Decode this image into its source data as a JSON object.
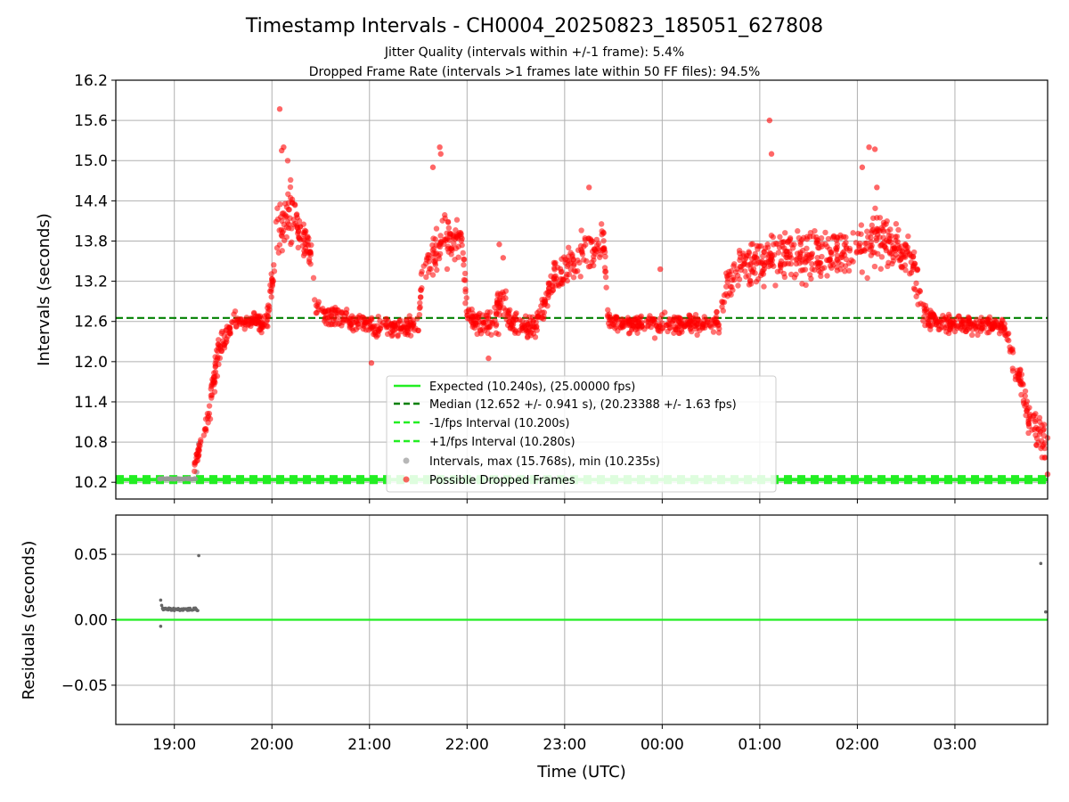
{
  "title": "Timestamp Intervals - CH0004_20250823_185051_627808",
  "subtitle1": "Jitter Quality (intervals within +/-1 frame): 5.4%",
  "subtitle2": "Dropped Frame Rate (intervals >1 frames late within 50 FF files): 94.5%",
  "chart_data": [
    {
      "type": "scatter",
      "panel": "top",
      "ylabel": "Intervals (seconds)",
      "ylim": [
        9.95,
        16.2
      ],
      "yticks": [
        10.2,
        10.8,
        11.4,
        12.0,
        12.6,
        13.2,
        13.8,
        14.4,
        15.0,
        15.6,
        16.2
      ],
      "ytick_labels": [
        "10.2",
        "10.8",
        "11.4",
        "12.0",
        "12.6",
        "13.2",
        "13.8",
        "14.4",
        "15.0",
        "15.6",
        "16.2"
      ],
      "xlim_hours": [
        18.4,
        27.95
      ],
      "grid": true,
      "legend_position": "lower-center",
      "reference_lines": [
        {
          "name": "Expected (10.240s), (25.00000 fps)",
          "value": 10.24,
          "style": "solid",
          "color": "#22ee22"
        },
        {
          "name": "Median (12.652 +/- 0.941 s), (20.23388 +/- 1.63 fps)",
          "value": 12.652,
          "style": "dashed",
          "color": "#008000"
        },
        {
          "name": "-1/fps Interval (10.200s)",
          "value": 10.2,
          "style": "dashed",
          "color": "#22ee22"
        },
        {
          "name": "+1/fps Interval (10.280s)",
          "value": 10.28,
          "style": "dashed",
          "color": "#22ee22"
        }
      ],
      "series": [
        {
          "name": "Intervals, max (15.768s), min (10.235s)",
          "color": "#999999",
          "points": [
            [
              18.85,
              10.25
            ],
            [
              18.95,
              10.25
            ],
            [
              19.05,
              10.25
            ],
            [
              19.15,
              10.26
            ],
            [
              19.23,
              10.35
            ],
            [
              19.25,
              10.78
            ]
          ]
        },
        {
          "name": "Possible Dropped Frames",
          "color": "#ff0000",
          "profile": [
            [
              19.2,
              10.4,
              0.05
            ],
            [
              19.35,
              11.2,
              0.15
            ],
            [
              19.45,
              12.1,
              0.2
            ],
            [
              19.6,
              12.6,
              0.12
            ],
            [
              19.8,
              12.6,
              0.12
            ],
            [
              19.95,
              12.6,
              0.15
            ],
            [
              20.05,
              13.8,
              0.4
            ],
            [
              20.15,
              14.3,
              0.45
            ],
            [
              20.3,
              13.9,
              0.25
            ],
            [
              20.4,
              13.6,
              0.2
            ],
            [
              20.45,
              12.8,
              0.15
            ],
            [
              20.8,
              12.6,
              0.12
            ],
            [
              21.2,
              12.5,
              0.13
            ],
            [
              21.5,
              12.55,
              0.13
            ],
            [
              21.55,
              13.4,
              0.2
            ],
            [
              21.75,
              13.8,
              0.3
            ],
            [
              21.95,
              13.8,
              0.25
            ],
            [
              22.0,
              12.7,
              0.15
            ],
            [
              22.25,
              12.5,
              0.2
            ],
            [
              22.35,
              13.0,
              0.3
            ],
            [
              22.45,
              12.6,
              0.15
            ],
            [
              22.7,
              12.5,
              0.15
            ],
            [
              22.9,
              13.3,
              0.2
            ],
            [
              23.2,
              13.6,
              0.25
            ],
            [
              23.4,
              13.8,
              0.2
            ],
            [
              23.45,
              12.6,
              0.12
            ],
            [
              24.0,
              12.55,
              0.12
            ],
            [
              24.6,
              12.6,
              0.12
            ],
            [
              24.65,
              13.2,
              0.2
            ],
            [
              25.0,
              13.5,
              0.3
            ],
            [
              25.3,
              13.6,
              0.3
            ],
            [
              25.8,
              13.6,
              0.3
            ],
            [
              26.2,
              13.8,
              0.35
            ],
            [
              26.55,
              13.6,
              0.25
            ],
            [
              26.65,
              12.9,
              0.25
            ],
            [
              26.75,
              12.6,
              0.12
            ],
            [
              27.2,
              12.55,
              0.12
            ],
            [
              27.5,
              12.55,
              0.1
            ],
            [
              27.6,
              12.0,
              0.2
            ],
            [
              27.75,
              11.2,
              0.25
            ],
            [
              27.95,
              10.7,
              0.2
            ]
          ],
          "outliers": [
            [
              20.08,
              15.77
            ],
            [
              20.1,
              15.15
            ],
            [
              20.12,
              15.2
            ],
            [
              21.72,
              15.2
            ],
            [
              21.73,
              15.1
            ],
            [
              21.65,
              14.9
            ],
            [
              23.25,
              14.6
            ],
            [
              25.1,
              15.6
            ],
            [
              25.12,
              15.1
            ],
            [
              26.12,
              15.2
            ],
            [
              26.18,
              15.17
            ],
            [
              26.05,
              14.9
            ],
            [
              26.2,
              14.6
            ],
            [
              22.33,
              13.75
            ],
            [
              22.37,
              13.55
            ],
            [
              23.98,
              13.38
            ],
            [
              21.02,
              11.98
            ],
            [
              22.22,
              12.05
            ],
            [
              27.95,
              10.32
            ]
          ]
        }
      ]
    },
    {
      "type": "scatter",
      "panel": "bottom",
      "xlabel": "Time (UTC)",
      "ylabel": "Residuals (seconds)",
      "ylim": [
        -0.08,
        0.08
      ],
      "yticks": [
        0.05,
        0.0,
        -0.05
      ],
      "ytick_labels": [
        "0.05",
        "0.00",
        "−0.05"
      ],
      "xticks_hours": [
        19,
        20,
        21,
        22,
        23,
        24,
        25,
        26,
        27
      ],
      "xtick_labels": [
        "19:00",
        "20:00",
        "21:00",
        "22:00",
        "23:00",
        "00:00",
        "01:00",
        "02:00",
        "03:00"
      ],
      "grid": true,
      "zero_line_color": "#22ee22",
      "series": [
        {
          "name": "Residuals",
          "color": "#666666",
          "points": [
            [
              18.86,
              0.015
            ],
            [
              18.86,
              -0.005
            ],
            [
              18.87,
              0.011
            ],
            [
              18.88,
              0.009
            ],
            [
              18.9,
              0.008
            ],
            [
              18.95,
              0.008
            ],
            [
              19.0,
              0.008
            ],
            [
              19.05,
              0.008
            ],
            [
              19.1,
              0.008
            ],
            [
              19.15,
              0.008
            ],
            [
              19.2,
              0.008
            ],
            [
              19.25,
              0.049
            ],
            [
              27.88,
              0.043
            ],
            [
              27.93,
              0.006
            ]
          ]
        }
      ]
    }
  ]
}
